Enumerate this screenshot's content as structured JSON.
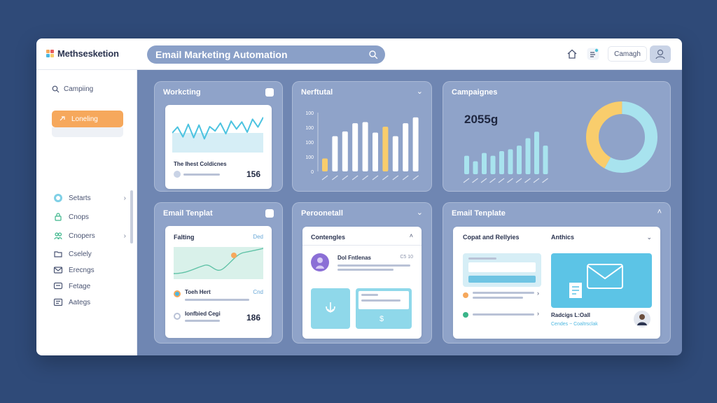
{
  "brand": {
    "name": "Methsesketion"
  },
  "search": {
    "text": "Email Marketing Automation"
  },
  "header": {
    "button_label": "Camagh"
  },
  "sidebar": {
    "search_label": "Campiing",
    "active_label": "Loneling",
    "items": [
      {
        "label": "Setarts"
      },
      {
        "label": "Cnops"
      },
      {
        "label": "Cnopers"
      },
      {
        "label": "Cselely"
      },
      {
        "label": "Erecngs"
      },
      {
        "label": "Fetage"
      },
      {
        "label": "Aategs"
      }
    ]
  },
  "cards": {
    "workflow": {
      "title": "Workcting",
      "caption": "The Ihest Coldicnes",
      "value": "156"
    },
    "chart_mid": {
      "title": "Nerftutal"
    },
    "campaigns": {
      "title": "Campaignes",
      "value": "2055g"
    },
    "template_left": {
      "title": "Email Tenplat",
      "inner_title": "Falting",
      "link": "Ded",
      "row1_title": "Toeh Hert",
      "row1_link": "Cnd",
      "row2_title": "Ionfbied Cegi",
      "row2_value": "186"
    },
    "personal": {
      "title": "Peroonetall",
      "inner_title": "Contengles",
      "profile_name": "Dol Fntlenas",
      "profile_meta": "C5 10"
    },
    "template_right": {
      "title": "Email Tenplate",
      "col1": "Copat and Rellyies",
      "col2": "Anthics",
      "caption": "Radcigs L:Oall",
      "caption_link": "Cendes ~ Coaltrsclak"
    }
  },
  "colors": {
    "accent_orange": "#f6a85c",
    "accent_yellow": "#f9cd6c",
    "accent_blue": "#7fd0e6",
    "card_bg": "#8fa3c9"
  },
  "chart_data": [
    {
      "type": "bar",
      "title": "Nerftutal",
      "yticks": [
        "100",
        "100",
        "100",
        "100",
        "0"
      ],
      "values": [
        22,
        60,
        68,
        82,
        84,
        66,
        76,
        60,
        82,
        92
      ],
      "colors": [
        "#f9cd6c",
        "#ffffff",
        "#ffffff",
        "#ffffff",
        "#ffffff",
        "#ffffff",
        "#f9cd6c",
        "#ffffff",
        "#ffffff",
        "#ffffff"
      ],
      "ylim": [
        0,
        100
      ]
    },
    {
      "type": "bar",
      "title": "Campaignes",
      "values": [
        40,
        28,
        46,
        40,
        50,
        54,
        62,
        78,
        92,
        62
      ],
      "ylim": [
        0,
        100
      ]
    },
    {
      "type": "pie",
      "slices": [
        {
          "value": 58,
          "color": "#a8e3ee"
        },
        {
          "value": 42,
          "color": "#f9cd6c"
        }
      ]
    },
    {
      "type": "line",
      "values": [
        50,
        65,
        40,
        72,
        38,
        70,
        35,
        66,
        55,
        75,
        48,
        80,
        60,
        78,
        52,
        85,
        65,
        90
      ],
      "ylim": [
        0,
        100
      ]
    }
  ]
}
